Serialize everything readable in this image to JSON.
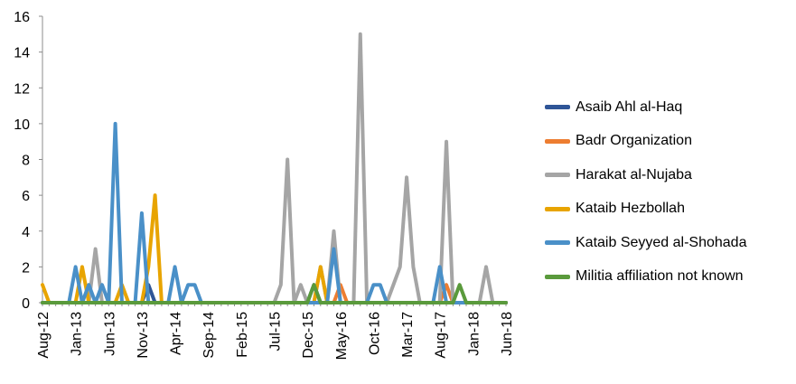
{
  "chart_data": {
    "type": "line",
    "title": "",
    "xlabel": "",
    "ylabel": "",
    "ylim": [
      0,
      16
    ],
    "y_ticks": [
      "0",
      "2",
      "4",
      "6",
      "8",
      "10",
      "12",
      "14",
      "16"
    ],
    "x_tick_labels": [
      "Aug-12",
      "Jan-13",
      "Jun-13",
      "Nov-13",
      "Apr-14",
      "Sep-14",
      "Feb-15",
      "Jul-15",
      "Dec-15",
      "May-16",
      "Oct-16",
      "Mar-17",
      "Aug-17",
      "Jan-18",
      "Jun-18"
    ],
    "x_range": [
      "2012-08",
      "2018-06"
    ],
    "grid": false,
    "legend_position": "right",
    "series": [
      {
        "name": "Asaib Ahl al-Haq",
        "color": "#2f5597",
        "points": [
          [
            "2012-08",
            0
          ],
          [
            "2013-11",
            0
          ],
          [
            "2013-12",
            1
          ],
          [
            "2014-01",
            0
          ],
          [
            "2015-12",
            0
          ],
          [
            "2016-01",
            1
          ],
          [
            "2016-02",
            0
          ],
          [
            "2018-06",
            0
          ]
        ]
      },
      {
        "name": "Badr Organization",
        "color": "#ed7d31",
        "points": [
          [
            "2012-08",
            0
          ],
          [
            "2016-04",
            0
          ],
          [
            "2016-05",
            1
          ],
          [
            "2016-06",
            0
          ],
          [
            "2017-08",
            0
          ],
          [
            "2017-09",
            1
          ],
          [
            "2017-10",
            0
          ],
          [
            "2018-06",
            0
          ]
        ]
      },
      {
        "name": "Harakat al-Nujaba",
        "color": "#a5a5a5",
        "points": [
          [
            "2012-08",
            0
          ],
          [
            "2013-03",
            0
          ],
          [
            "2013-04",
            3
          ],
          [
            "2013-05",
            0
          ],
          [
            "2015-07",
            0
          ],
          [
            "2015-08",
            1
          ],
          [
            "2015-09",
            8
          ],
          [
            "2015-10",
            0
          ],
          [
            "2015-11",
            1
          ],
          [
            "2015-12",
            0
          ],
          [
            "2016-01",
            0
          ],
          [
            "2016-02",
            2
          ],
          [
            "2016-03",
            0
          ],
          [
            "2016-04",
            4
          ],
          [
            "2016-05",
            0
          ],
          [
            "2016-07",
            0
          ],
          [
            "2016-08",
            15
          ],
          [
            "2016-09",
            0
          ],
          [
            "2016-12",
            0
          ],
          [
            "2017-02",
            2
          ],
          [
            "2017-03",
            7
          ],
          [
            "2017-04",
            2
          ],
          [
            "2017-05",
            0
          ],
          [
            "2017-08",
            0
          ],
          [
            "2017-09",
            9
          ],
          [
            "2017-10",
            0
          ],
          [
            "2018-02",
            0
          ],
          [
            "2018-03",
            2
          ],
          [
            "2018-04",
            0
          ],
          [
            "2018-06",
            0
          ]
        ]
      },
      {
        "name": "Kataib Hezbollah",
        "color": "#e8a400",
        "points": [
          [
            "2012-08",
            1
          ],
          [
            "2012-09",
            0
          ],
          [
            "2013-01",
            0
          ],
          [
            "2013-02",
            2
          ],
          [
            "2013-03",
            0
          ],
          [
            "2013-07",
            0
          ],
          [
            "2013-08",
            1
          ],
          [
            "2013-09",
            0
          ],
          [
            "2013-11",
            0
          ],
          [
            "2013-12",
            2
          ],
          [
            "2014-01",
            6
          ],
          [
            "2014-02",
            0
          ],
          [
            "2016-01",
            0
          ],
          [
            "2016-02",
            2
          ],
          [
            "2016-03",
            0
          ],
          [
            "2018-06",
            0
          ]
        ]
      },
      {
        "name": "Kataib Seyyed al-Shohada",
        "color": "#4a90c8",
        "points": [
          [
            "2012-08",
            0
          ],
          [
            "2012-12",
            0
          ],
          [
            "2013-01",
            2
          ],
          [
            "2013-02",
            0
          ],
          [
            "2013-03",
            1
          ],
          [
            "2013-04",
            0
          ],
          [
            "2013-05",
            1
          ],
          [
            "2013-06",
            0
          ],
          [
            "2013-07",
            10
          ],
          [
            "2013-08",
            0
          ],
          [
            "2013-10",
            0
          ],
          [
            "2013-11",
            5
          ],
          [
            "2013-12",
            0
          ],
          [
            "2014-03",
            0
          ],
          [
            "2014-04",
            2
          ],
          [
            "2014-05",
            0
          ],
          [
            "2014-06",
            1
          ],
          [
            "2014-07",
            1
          ],
          [
            "2014-08",
            0
          ],
          [
            "2016-03",
            0
          ],
          [
            "2016-04",
            3
          ],
          [
            "2016-05",
            0
          ],
          [
            "2016-09",
            0
          ],
          [
            "2016-10",
            1
          ],
          [
            "2016-11",
            1
          ],
          [
            "2016-12",
            0
          ],
          [
            "2017-07",
            0
          ],
          [
            "2017-08",
            2
          ],
          [
            "2017-09",
            0
          ],
          [
            "2018-06",
            0
          ]
        ]
      },
      {
        "name": "Militia affiliation not known",
        "color": "#5a9a3c",
        "points": [
          [
            "2012-08",
            0
          ],
          [
            "2015-12",
            0
          ],
          [
            "2016-01",
            1
          ],
          [
            "2016-02",
            0
          ],
          [
            "2017-10",
            0
          ],
          [
            "2017-11",
            1
          ],
          [
            "2017-12",
            0
          ],
          [
            "2018-06",
            0
          ]
        ]
      }
    ]
  }
}
